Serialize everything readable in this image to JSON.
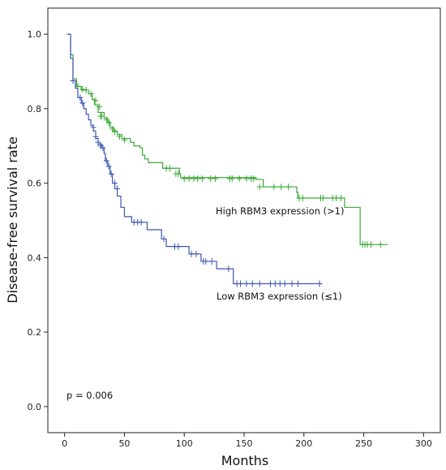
{
  "chart_data": {
    "type": "line",
    "subtype": "kaplan-meier",
    "xlabel": "Months",
    "ylabel": "Disease-free survival rate",
    "xlim": [
      -14,
      314
    ],
    "ylim": [
      -0.07,
      1.07
    ],
    "xticks": [
      0,
      50,
      100,
      150,
      200,
      250,
      300
    ],
    "yticks": [
      0.0,
      0.2,
      0.4,
      0.6,
      0.8,
      1.0
    ],
    "grid": false,
    "series": [
      {
        "name": "High RBM3 expression (>1)",
        "color": "#3aaa35",
        "steps": [
          [
            2,
            1.0
          ],
          [
            5,
            0.945
          ],
          [
            7,
            0.88
          ],
          [
            10,
            0.86
          ],
          [
            14,
            0.85
          ],
          [
            20,
            0.84
          ],
          [
            23,
            0.825
          ],
          [
            25,
            0.81
          ],
          [
            28,
            0.79
          ],
          [
            33,
            0.775
          ],
          [
            36,
            0.765
          ],
          [
            38,
            0.75
          ],
          [
            41,
            0.74
          ],
          [
            44,
            0.73
          ],
          [
            48,
            0.72
          ],
          [
            55,
            0.71
          ],
          [
            58,
            0.7
          ],
          [
            63,
            0.695
          ],
          [
            65,
            0.675
          ],
          [
            67,
            0.665
          ],
          [
            70,
            0.655
          ],
          [
            82,
            0.64
          ],
          [
            96,
            0.625
          ],
          [
            97,
            0.615
          ],
          [
            160,
            0.61
          ],
          [
            166,
            0.59
          ],
          [
            194,
            0.575
          ],
          [
            195,
            0.56
          ],
          [
            234,
            0.535
          ],
          [
            247,
            0.435
          ],
          [
            270,
            0.435
          ]
        ],
        "censors": [
          [
            7,
            0.875
          ],
          [
            11,
            0.86
          ],
          [
            15,
            0.852
          ],
          [
            18,
            0.85
          ],
          [
            22,
            0.84
          ],
          [
            26,
            0.822
          ],
          [
            29,
            0.805
          ],
          [
            30,
            0.78
          ],
          [
            31,
            0.78
          ],
          [
            35,
            0.77
          ],
          [
            37,
            0.762
          ],
          [
            40,
            0.745
          ],
          [
            42,
            0.738
          ],
          [
            46,
            0.725
          ],
          [
            50,
            0.716
          ],
          [
            85,
            0.64
          ],
          [
            88,
            0.64
          ],
          [
            93,
            0.625
          ],
          [
            95,
            0.625
          ],
          [
            100,
            0.612
          ],
          [
            104,
            0.612
          ],
          [
            108,
            0.612
          ],
          [
            111,
            0.612
          ],
          [
            115,
            0.612
          ],
          [
            122,
            0.612
          ],
          [
            126,
            0.612
          ],
          [
            138,
            0.612
          ],
          [
            140,
            0.612
          ],
          [
            146,
            0.612
          ],
          [
            152,
            0.612
          ],
          [
            156,
            0.612
          ],
          [
            158,
            0.612
          ],
          [
            163,
            0.59
          ],
          [
            175,
            0.59
          ],
          [
            181,
            0.59
          ],
          [
            187,
            0.59
          ],
          [
            196,
            0.56
          ],
          [
            199,
            0.56
          ],
          [
            214,
            0.56
          ],
          [
            216,
            0.56
          ],
          [
            224,
            0.56
          ],
          [
            227,
            0.56
          ],
          [
            231,
            0.56
          ],
          [
            249,
            0.435
          ],
          [
            251,
            0.435
          ],
          [
            253,
            0.435
          ],
          [
            256,
            0.435
          ],
          [
            264,
            0.435
          ]
        ]
      },
      {
        "name": "Low RBM3 expression (≤1)",
        "color": "#3c57b0",
        "steps": [
          [
            2,
            1.0
          ],
          [
            5,
            0.935
          ],
          [
            7,
            0.875
          ],
          [
            9,
            0.855
          ],
          [
            11,
            0.83
          ],
          [
            14,
            0.815
          ],
          [
            16,
            0.8
          ],
          [
            18,
            0.785
          ],
          [
            20,
            0.77
          ],
          [
            22,
            0.755
          ],
          [
            24,
            0.74
          ],
          [
            26,
            0.72
          ],
          [
            28,
            0.705
          ],
          [
            31,
            0.695
          ],
          [
            33,
            0.68
          ],
          [
            34,
            0.66
          ],
          [
            36,
            0.645
          ],
          [
            38,
            0.625
          ],
          [
            40,
            0.6
          ],
          [
            42,
            0.585
          ],
          [
            44,
            0.565
          ],
          [
            47,
            0.535
          ],
          [
            50,
            0.51
          ],
          [
            56,
            0.495
          ],
          [
            69,
            0.475
          ],
          [
            81,
            0.45
          ],
          [
            85,
            0.43
          ],
          [
            104,
            0.41
          ],
          [
            114,
            0.39
          ],
          [
            127,
            0.37
          ],
          [
            141,
            0.33
          ],
          [
            215,
            0.33
          ]
        ],
        "censors": [
          [
            7,
            0.875
          ],
          [
            13,
            0.83
          ],
          [
            15,
            0.815
          ],
          [
            24,
            0.75
          ],
          [
            26,
            0.725
          ],
          [
            28,
            0.71
          ],
          [
            30,
            0.7
          ],
          [
            32,
            0.695
          ],
          [
            35,
            0.66
          ],
          [
            37,
            0.645
          ],
          [
            39,
            0.625
          ],
          [
            42,
            0.6
          ],
          [
            44,
            0.585
          ],
          [
            58,
            0.495
          ],
          [
            61,
            0.495
          ],
          [
            64,
            0.495
          ],
          [
            83,
            0.45
          ],
          [
            92,
            0.43
          ],
          [
            95,
            0.43
          ],
          [
            106,
            0.41
          ],
          [
            110,
            0.41
          ],
          [
            116,
            0.39
          ],
          [
            118,
            0.39
          ],
          [
            123,
            0.39
          ],
          [
            137,
            0.37
          ],
          [
            144,
            0.33
          ],
          [
            147,
            0.33
          ],
          [
            152,
            0.33
          ],
          [
            157,
            0.33
          ],
          [
            163,
            0.33
          ],
          [
            172,
            0.33
          ],
          [
            176,
            0.33
          ],
          [
            180,
            0.33
          ],
          [
            184,
            0.33
          ],
          [
            190,
            0.33
          ],
          [
            195,
            0.33
          ],
          [
            213,
            0.33
          ]
        ]
      }
    ],
    "annotations": [
      "High RBM3 expression (>1)",
      "Low RBM3 expression (≤1)",
      "p = 0.006"
    ]
  }
}
